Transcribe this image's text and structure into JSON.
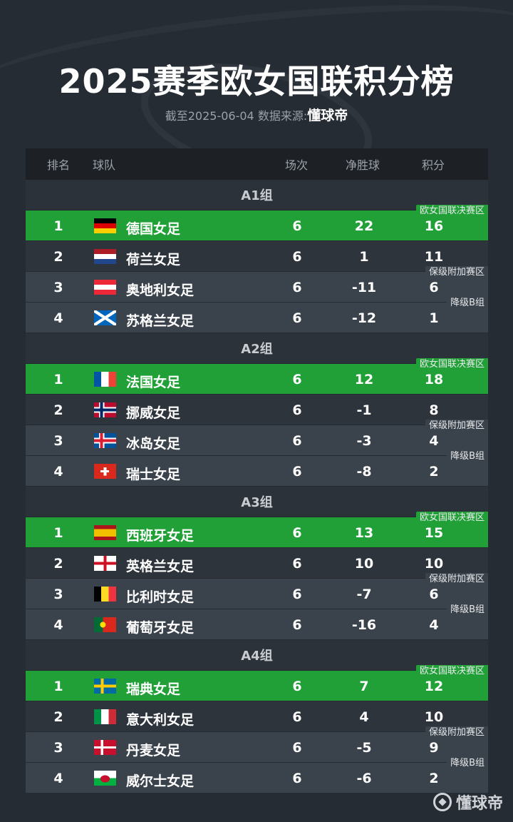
{
  "title": "2025赛季欧女国联积分榜",
  "subtitle_prefix": "截至2025-06-04 数据来源:",
  "source": "懂球帝",
  "headers": {
    "rank": "排名",
    "team": "球队",
    "played": "场次",
    "gd": "净胜球",
    "pts": "积分"
  },
  "tags": {
    "final": "欧女国联决赛区",
    "playoff": "保级附加赛区",
    "releg": "降级B组"
  },
  "colors": {
    "green": "#21a038",
    "bg": "#262c33"
  },
  "groups": [
    {
      "name": "A1组",
      "teams": [
        {
          "rank": "1",
          "name": "德国女足",
          "flag": "germany",
          "played": "6",
          "gd": "22",
          "pts": "16"
        },
        {
          "rank": "2",
          "name": "荷兰女足",
          "flag": "netherlands",
          "played": "6",
          "gd": "1",
          "pts": "11"
        },
        {
          "rank": "3",
          "name": "奥地利女足",
          "flag": "austria",
          "played": "6",
          "gd": "-11",
          "pts": "6"
        },
        {
          "rank": "4",
          "name": "苏格兰女足",
          "flag": "scotland",
          "played": "6",
          "gd": "-12",
          "pts": "1"
        }
      ]
    },
    {
      "name": "A2组",
      "teams": [
        {
          "rank": "1",
          "name": "法国女足",
          "flag": "france",
          "played": "6",
          "gd": "12",
          "pts": "18"
        },
        {
          "rank": "2",
          "name": "挪威女足",
          "flag": "norway",
          "played": "6",
          "gd": "-1",
          "pts": "8"
        },
        {
          "rank": "3",
          "name": "冰岛女足",
          "flag": "iceland",
          "played": "6",
          "gd": "-3",
          "pts": "4"
        },
        {
          "rank": "4",
          "name": "瑞士女足",
          "flag": "switzerland",
          "played": "6",
          "gd": "-8",
          "pts": "2"
        }
      ]
    },
    {
      "name": "A3组",
      "teams": [
        {
          "rank": "1",
          "name": "西班牙女足",
          "flag": "spain",
          "played": "6",
          "gd": "13",
          "pts": "15"
        },
        {
          "rank": "2",
          "name": "英格兰女足",
          "flag": "england",
          "played": "6",
          "gd": "10",
          "pts": "10"
        },
        {
          "rank": "3",
          "name": "比利时女足",
          "flag": "belgium",
          "played": "6",
          "gd": "-7",
          "pts": "6"
        },
        {
          "rank": "4",
          "name": "葡萄牙女足",
          "flag": "portugal",
          "played": "6",
          "gd": "-16",
          "pts": "4"
        }
      ]
    },
    {
      "name": "A4组",
      "teams": [
        {
          "rank": "1",
          "name": "瑞典女足",
          "flag": "sweden",
          "played": "6",
          "gd": "7",
          "pts": "12"
        },
        {
          "rank": "2",
          "name": "意大利女足",
          "flag": "italy",
          "played": "6",
          "gd": "4",
          "pts": "10"
        },
        {
          "rank": "3",
          "name": "丹麦女足",
          "flag": "denmark",
          "played": "6",
          "gd": "-5",
          "pts": "9"
        },
        {
          "rank": "4",
          "name": "威尔士女足",
          "flag": "wales",
          "played": "6",
          "gd": "-6",
          "pts": "2"
        }
      ]
    }
  ]
}
